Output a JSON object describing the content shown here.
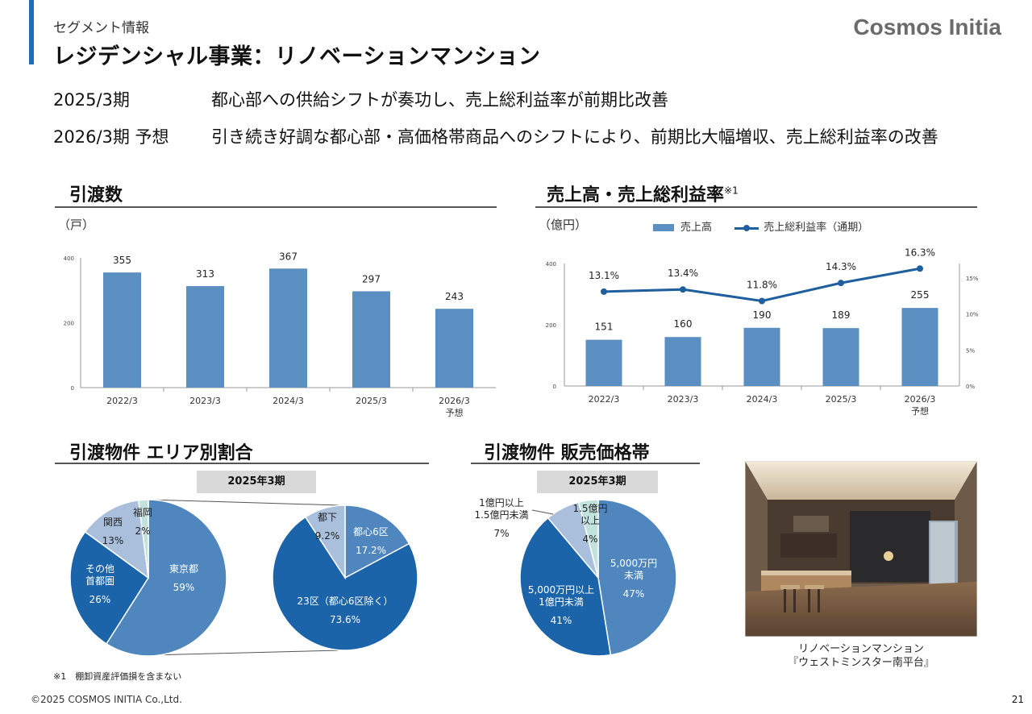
{
  "header": {
    "segment_label": "セグメント情報",
    "title": "レジデンシャル事業：リノベーションマンション",
    "logo": "Cosmos Initia"
  },
  "summary": [
    {
      "period": "2025/3期",
      "text": "都心部への供給シフトが奏功し、売上総利益率が前期比改善"
    },
    {
      "period": "2026/3期 予想",
      "text": "引き続き好調な都心部・高価格帯商品へのシフトにより、前期比大幅増収、売上総利益率の改善"
    }
  ],
  "deliveries": {
    "title": "引渡数",
    "unit": "（戸）"
  },
  "sales": {
    "title": "売上高・売上総利益率",
    "title_note": "※1",
    "unit": "（億円）",
    "legend_bar": "売上高",
    "legend_line": "売上総利益率（通期）"
  },
  "area": {
    "title": "引渡物件 エリア別割合",
    "badge": "2025年3期"
  },
  "price": {
    "title": "引渡物件 販売価格帯",
    "badge": "2025年3期"
  },
  "photo": {
    "caption_line1": "リノベーションマンション",
    "caption_line2": "『ウェストミンスター南平台』"
  },
  "footer": {
    "footnote": "※1　棚卸資産評価損を含まない",
    "copyright": "©2025 COSMOS INITIA Co.,Ltd.",
    "page_number": "21"
  },
  "colors": {
    "bar": "#5b8fc2",
    "line": "#1f5f9e",
    "pie_dark": "#1c64aa",
    "pie_mid": "#4f86bd",
    "pie_light": "#a9bfdb",
    "pie_pale": "#c2e2de"
  },
  "chart_data": [
    {
      "id": "deliveries",
      "type": "bar",
      "categories": [
        "2022/3",
        "2023/3",
        "2024/3",
        "2025/3",
        "2026/3"
      ],
      "category_sub": [
        "",
        "",
        "",
        "",
        "予想"
      ],
      "values": [
        355,
        313,
        367,
        297,
        243
      ],
      "ylabel": "（戸）",
      "ylim": [
        0,
        400
      ],
      "yticks": [
        0,
        200,
        400
      ]
    },
    {
      "id": "sales",
      "type": "bar",
      "categories": [
        "2022/3",
        "2023/3",
        "2024/3",
        "2025/3",
        "2026/3"
      ],
      "category_sub": [
        "",
        "",
        "",
        "",
        "予想"
      ],
      "series": [
        {
          "name": "売上高",
          "type": "bar",
          "axis": "left",
          "values": [
            151,
            160,
            190,
            189,
            255
          ],
          "labels": [
            "151",
            "160",
            "190",
            "189",
            "255"
          ]
        },
        {
          "name": "売上総利益率（通期）",
          "type": "line",
          "axis": "right",
          "values": [
            13.1,
            13.4,
            11.8,
            14.3,
            16.3
          ],
          "labels": [
            "13.1%",
            "13.4%",
            "11.8%",
            "14.3%",
            "16.3%"
          ]
        }
      ],
      "ylabel": "（億円）",
      "ylim": [
        0,
        400
      ],
      "yticks": [
        0,
        200,
        400
      ],
      "y2lim": [
        0,
        17
      ],
      "y2ticks": [
        "0%",
        "5%",
        "10%",
        "15%"
      ],
      "legend": "top"
    },
    {
      "id": "area_main",
      "type": "pie",
      "slices": [
        {
          "label": "東京都",
          "value": 59,
          "value_label": "59%"
        },
        {
          "label": "その他\n首都圏",
          "value": 26,
          "value_label": "26%"
        },
        {
          "label": "関西",
          "value": 13,
          "value_label": "13%"
        },
        {
          "label": "福岡",
          "value": 2,
          "value_label": "2%"
        }
      ]
    },
    {
      "id": "area_tokyo",
      "type": "pie",
      "slices": [
        {
          "label": "都心6区",
          "value": 17.2,
          "value_label": "17.2%"
        },
        {
          "label": "23区（都心6区除く）",
          "value": 73.6,
          "value_label": "73.6%"
        },
        {
          "label": "都下",
          "value": 9.2,
          "value_label": "9.2%"
        }
      ]
    },
    {
      "id": "price",
      "type": "pie",
      "slices": [
        {
          "label": "5,000万円\n未満",
          "value": 47,
          "value_label": "47%"
        },
        {
          "label": "5,000万円以上\n1億円未満",
          "value": 41,
          "value_label": "41%"
        },
        {
          "label": "1億円以上\n1.5億円未満",
          "value": 7,
          "value_label": "7%"
        },
        {
          "label": "1.5億円\n以上",
          "value": 4,
          "value_label": "4%"
        }
      ]
    }
  ]
}
